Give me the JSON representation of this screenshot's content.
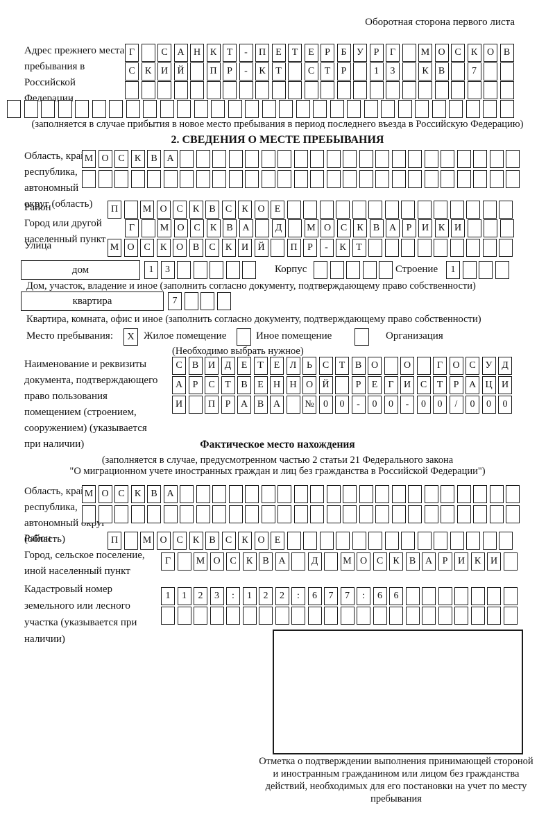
{
  "page": {
    "header_note": "Оборотная сторона первого листа"
  },
  "prev_address": {
    "label": "Адрес прежнего места пребывания в Российской Федерации",
    "rows": {
      "r1": [
        "Г",
        "",
        "С",
        "А",
        "Н",
        "К",
        "Т",
        "-",
        "П",
        "Е",
        "Т",
        "Е",
        "Р",
        "Б",
        "У",
        "Р",
        "Г",
        "",
        "М",
        "О",
        "С",
        "К",
        "О",
        "В"
      ],
      "r2": [
        "С",
        "К",
        "И",
        "Й",
        "",
        "П",
        "Р",
        "-",
        "К",
        "Т",
        "",
        "С",
        "Т",
        "Р",
        "",
        "1",
        "3",
        "",
        "К",
        "В",
        "",
        "7",
        "",
        ""
      ],
      "r3": 24,
      "r4": 30
    },
    "note": "(заполняется в случае прибытия в новое место пребывания в период последнего въезда в Российскую Федерацию)"
  },
  "section2": {
    "title": "2. СВЕДЕНИЯ О МЕСТЕ ПРЕБЫВАНИЯ",
    "region": {
      "label": "Область, край, республика, автономный округ (область)",
      "r1": [
        "М",
        "О",
        "С",
        "К",
        "В",
        "А",
        "",
        "",
        "",
        "",
        "",
        "",
        "",
        "",
        "",
        "",
        "",
        "",
        "",
        "",
        "",
        "",
        "",
        "",
        "",
        "",
        ""
      ],
      "r2": 27
    },
    "district": {
      "label": "Район",
      "row": [
        "П",
        "",
        "М",
        "О",
        "С",
        "К",
        "В",
        "С",
        "К",
        "О",
        "Е",
        "",
        "",
        "",
        "",
        "",
        "",
        "",
        "",
        "",
        "",
        "",
        "",
        "",
        ""
      ]
    },
    "city": {
      "label": "Город или другой населенный пункт",
      "row": [
        "Г",
        "",
        "М",
        "О",
        "С",
        "К",
        "В",
        "А",
        "",
        "Д",
        "",
        "М",
        "О",
        "С",
        "К",
        "В",
        "А",
        "Р",
        "И",
        "К",
        "И",
        "",
        "",
        ""
      ]
    },
    "street": {
      "label": "Улица",
      "row": [
        "М",
        "О",
        "С",
        "К",
        "О",
        "В",
        "С",
        "К",
        "И",
        "Й",
        "",
        "П",
        "Р",
        "-",
        "К",
        "Т",
        "",
        "",
        "",
        "",
        "",
        "",
        "",
        "",
        ""
      ]
    },
    "house": {
      "named_box": "дом",
      "cells": [
        "1",
        "3",
        "",
        "",
        "",
        "",
        ""
      ],
      "korpus_label": "Корпус",
      "korpus_cells": 5,
      "stroenie_label": "Строение",
      "stroenie_cells": [
        "1",
        "",
        "",
        ""
      ]
    },
    "house_caption": "Дом, участок, владение и иное (заполнить согласно документу, подтверждающему право собственности)",
    "apartment": {
      "named_box": "квартира",
      "cells": [
        "7",
        "",
        "",
        ""
      ]
    },
    "apartment_caption": "Квартира, комната, офис и иное (заполнить согласно документу, подтверждающему право собственности)",
    "stay_type": {
      "label": "Место пребывания:",
      "options": [
        {
          "label": "Жилое помещение",
          "mark": "X"
        },
        {
          "label": "Иное помещение",
          "mark": ""
        },
        {
          "label": "Организация",
          "mark": ""
        }
      ],
      "note": "(Необходимо выбрать нужное)"
    },
    "document": {
      "label": "Наименование и реквизиты документа, подтверждающего право пользования помещением (строением, сооружением) (указывается при наличии)",
      "r1": [
        "С",
        "В",
        "И",
        "Д",
        "Е",
        "Т",
        "Е",
        "Л",
        "Ь",
        "С",
        "Т",
        "В",
        "О",
        "",
        "О",
        "",
        "Г",
        "О",
        "С",
        "У",
        "Д"
      ],
      "r2": [
        "А",
        "Р",
        "С",
        "Т",
        "В",
        "Е",
        "Н",
        "Н",
        "О",
        "Й",
        "",
        "Р",
        "Е",
        "Г",
        "И",
        "С",
        "Т",
        "Р",
        "А",
        "Ц",
        "И"
      ],
      "r3": [
        "И",
        "",
        "П",
        "Р",
        "А",
        "В",
        "А",
        "",
        "№",
        "0",
        "0",
        "-",
        "0",
        "0",
        "-",
        "0",
        "0",
        "/",
        "0",
        "0",
        "0"
      ]
    }
  },
  "actual_location": {
    "title": "Фактическое место нахождения",
    "note_line1": "(заполняется в случае, предусмотренном частью 2 статьи 21 Федерального закона",
    "note_line2": "\"О миграционном учете иностранных граждан и лиц без гражданства в Российской Федерации\")",
    "region": {
      "label": "Область, край, республика, автономный округ (область)",
      "r1": [
        "М",
        "О",
        "С",
        "К",
        "В",
        "А",
        "",
        "",
        "",
        "",
        "",
        "",
        "",
        "",
        "",
        "",
        "",
        "",
        "",
        "",
        "",
        "",
        "",
        "",
        "",
        "",
        ""
      ],
      "r2": 27
    },
    "district": {
      "label": "Район",
      "row": [
        "П",
        "",
        "М",
        "О",
        "С",
        "К",
        "В",
        "С",
        "К",
        "О",
        "Е",
        "",
        "",
        "",
        "",
        "",
        "",
        "",
        "",
        "",
        "",
        "",
        "",
        "",
        ""
      ]
    },
    "city": {
      "label": "Город, сельское поселение, иной населенный пункт",
      "row": [
        "Г",
        "",
        "М",
        "О",
        "С",
        "К",
        "В",
        "А",
        "",
        "Д",
        "",
        "М",
        "О",
        "С",
        "К",
        "В",
        "А",
        "Р",
        "И",
        "К",
        "И",
        ""
      ]
    },
    "cadastral": {
      "label": "Кадастровый номер земельного или лесного участка (указывается при наличии)",
      "r1": [
        "1",
        "1",
        "2",
        "3",
        ":",
        "1",
        "2",
        "2",
        ":",
        "6",
        "7",
        "7",
        ":",
        "6",
        "6",
        "",
        "",
        "",
        "",
        "",
        "",
        ""
      ],
      "r2": 22
    }
  },
  "stamp": {
    "caption": "Отметка о подтверждении выполнения принимающей стороной и иностранным гражданином или лицом без гражданства действий, необходимых для его постановки на учет по месту пребывания"
  }
}
